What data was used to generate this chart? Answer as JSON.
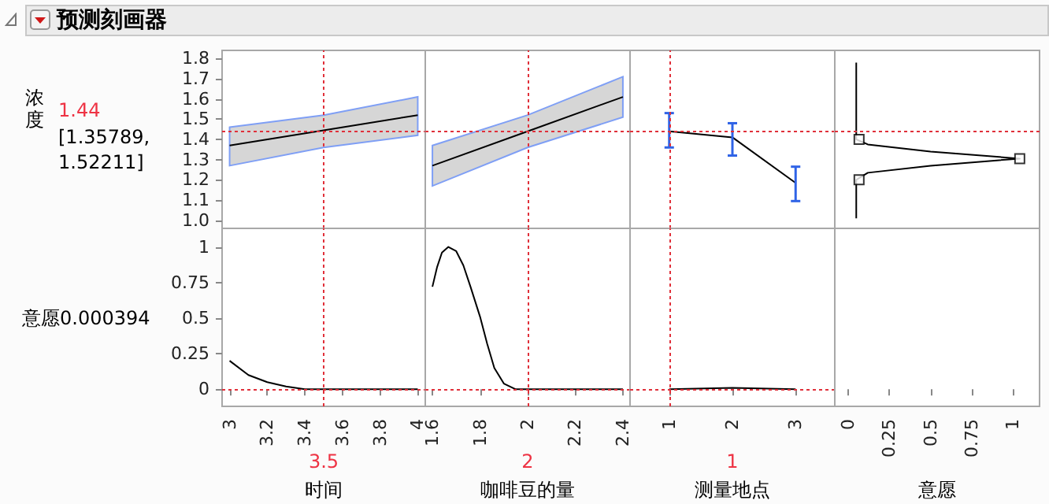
{
  "chart_data": [
    {
      "type": "line",
      "title": "预测刻画器",
      "ylabel": "浓度",
      "annotations": [
        "1.44",
        "[1.35789, 1.52211]"
      ],
      "x": [
        3,
        3.5,
        4
      ],
      "series": [
        {
          "color": "#000000",
          "values": [
            1.37,
            1.445,
            1.52
          ],
          "lower": [
            1.27,
            1.36,
            1.42
          ],
          "upper": [
            1.46,
            1.52,
            1.61
          ]
        }
      ],
      "xlim": [
        2.96,
        4.04
      ],
      "ylim": [
        0.96,
        1.84
      ],
      "yticks": [
        {
          "value": 1,
          "label": "1.0"
        },
        1.1,
        1.2,
        1.3,
        1.4,
        1.5,
        1.6,
        1.7,
        1.8
      ],
      "ref_lines": [
        {
          "axis": "x",
          "value": 3.5,
          "color": "#e0303a",
          "line_style": "dotted"
        },
        {
          "axis": "y",
          "value": 1.44,
          "color": "#e0303a",
          "line_style": "dotted"
        }
      ],
      "tick_labels": "y"
    },
    {
      "type": "line",
      "x": [
        1.6,
        2,
        2.4
      ],
      "series": [
        {
          "color": "#000000",
          "values": [
            1.27,
            1.44,
            1.61
          ],
          "lower": [
            1.17,
            1.36,
            1.51
          ],
          "upper": [
            1.37,
            1.52,
            1.71
          ]
        }
      ],
      "xlim": [
        1.57,
        2.43
      ],
      "ylim": [
        0.96,
        1.84
      ],
      "ref_lines": [
        {
          "axis": "x",
          "value": 2,
          "color": "#e0303a",
          "line_style": "dotted"
        },
        {
          "axis": "y",
          "value": 1.44,
          "color": "#e0303a",
          "line_style": "dotted"
        }
      ],
      "tick_labels": false
    },
    {
      "type": "line",
      "x": [
        1,
        2,
        3
      ],
      "series": [
        {
          "color": "#000000",
          "values": [
            1.44,
            1.41,
            1.185
          ],
          "errors": [
            [
              1.36,
              1.53
            ],
            [
              1.32,
              1.48
            ],
            [
              1.095,
              1.265
            ]
          ]
        }
      ],
      "xlim": [
        0.38,
        3.62
      ],
      "ylim": [
        0.96,
        1.84
      ],
      "ref_lines": [
        {
          "axis": "x",
          "value": 1,
          "color": "#e0303a",
          "line_style": "dotted"
        },
        {
          "axis": "y",
          "value": 1.44,
          "color": "#e0303a",
          "line_style": "dotted"
        }
      ],
      "tick_labels": false
    },
    {
      "type": "line",
      "series": [
        {
          "color": "#000000",
          "x": [
            0.05,
            0.05,
            0.12,
            0.5,
            1.04,
            0.5,
            0.12,
            0.05,
            0.05
          ],
          "values": [
            1.78,
            1.4,
            1.375,
            1.34,
            1.305,
            1.27,
            1.235,
            1.2,
            1.01
          ]
        },
        {
          "type": "scatter",
          "marker": "square",
          "color": "#000000",
          "x": [
            0.067,
            1.04,
            0.067
          ],
          "values": [
            1.4,
            1.305,
            1.2
          ]
        }
      ],
      "xlim": [
        -0.08,
        1.16
      ],
      "ylim": [
        0.96,
        1.84
      ],
      "ref_lines": [
        {
          "axis": "y",
          "value": 1.44,
          "color": "#e0303a",
          "line_style": "dotted"
        }
      ],
      "tick_labels": false
    },
    {
      "type": "line",
      "xlabel": "时间",
      "ylabel": "意愿0.000394",
      "annotations": [
        "3.5"
      ],
      "x": [
        3,
        3.1,
        3.2,
        3.3,
        3.4,
        3.5,
        3.6,
        3.8,
        4
      ],
      "series": [
        {
          "color": "#000000",
          "values": [
            0.2,
            0.1,
            0.05,
            0.02,
            0,
            0,
            0,
            0,
            0
          ]
        }
      ],
      "xlim": [
        2.96,
        4.04
      ],
      "ylim": [
        -0.12,
        1.13
      ],
      "xticks": [
        3,
        3.2,
        3.4,
        3.6,
        3.8,
        4
      ],
      "yticks": [
        0,
        0.25,
        0.5,
        0.75,
        1
      ],
      "ref_lines": [
        {
          "axis": "x",
          "value": 3.5,
          "color": "#e0303a",
          "line_style": "dotted"
        },
        {
          "axis": "y",
          "value": 0,
          "color": "#e0303a",
          "line_style": "dotted"
        }
      ]
    },
    {
      "type": "line",
      "xlabel": "咖啡豆的量",
      "annotations": [
        "2"
      ],
      "x": [
        1.6,
        1.62,
        1.64,
        1.667,
        1.7,
        1.73,
        1.76,
        1.8,
        1.83,
        1.86,
        1.9,
        1.95,
        2,
        2.2,
        2.4
      ],
      "series": [
        {
          "color": "#000000",
          "values": [
            0.72,
            0.86,
            0.96,
            1.0,
            0.97,
            0.87,
            0.72,
            0.51,
            0.32,
            0.15,
            0.04,
            0,
            0,
            0,
            0
          ]
        }
      ],
      "xlim": [
        1.57,
        2.43
      ],
      "ylim": [
        -0.12,
        1.13
      ],
      "xticks": [
        1.6,
        1.8,
        2,
        2.2,
        2.4
      ],
      "ref_lines": [
        {
          "axis": "x",
          "value": 2,
          "color": "#e0303a",
          "line_style": "dotted"
        },
        {
          "axis": "y",
          "value": 0,
          "color": "#e0303a",
          "line_style": "dotted"
        }
      ],
      "tick_labels": "x"
    },
    {
      "type": "line",
      "xlabel": "测量地点",
      "annotations": [
        "1"
      ],
      "x": [
        1,
        2,
        3
      ],
      "series": [
        {
          "color": "#000000",
          "values": [
            0,
            0.01,
            0
          ]
        }
      ],
      "xlim": [
        0.38,
        3.62
      ],
      "ylim": [
        -0.12,
        1.13
      ],
      "xticks": [
        1,
        2,
        3
      ],
      "ref_lines": [
        {
          "axis": "x",
          "value": 1,
          "color": "#e0303a",
          "line_style": "dotted"
        },
        {
          "axis": "y",
          "value": 0,
          "color": "#e0303a",
          "line_style": "dotted"
        }
      ],
      "tick_labels": "x"
    },
    {
      "type": "line",
      "xlabel": "意愿",
      "xlim": [
        -0.08,
        1.16
      ],
      "ylim": [
        -0.12,
        1.13
      ],
      "xticks": [
        0,
        0.25,
        0.5,
        0.75,
        1
      ],
      "tick_labels": "x"
    }
  ]
}
